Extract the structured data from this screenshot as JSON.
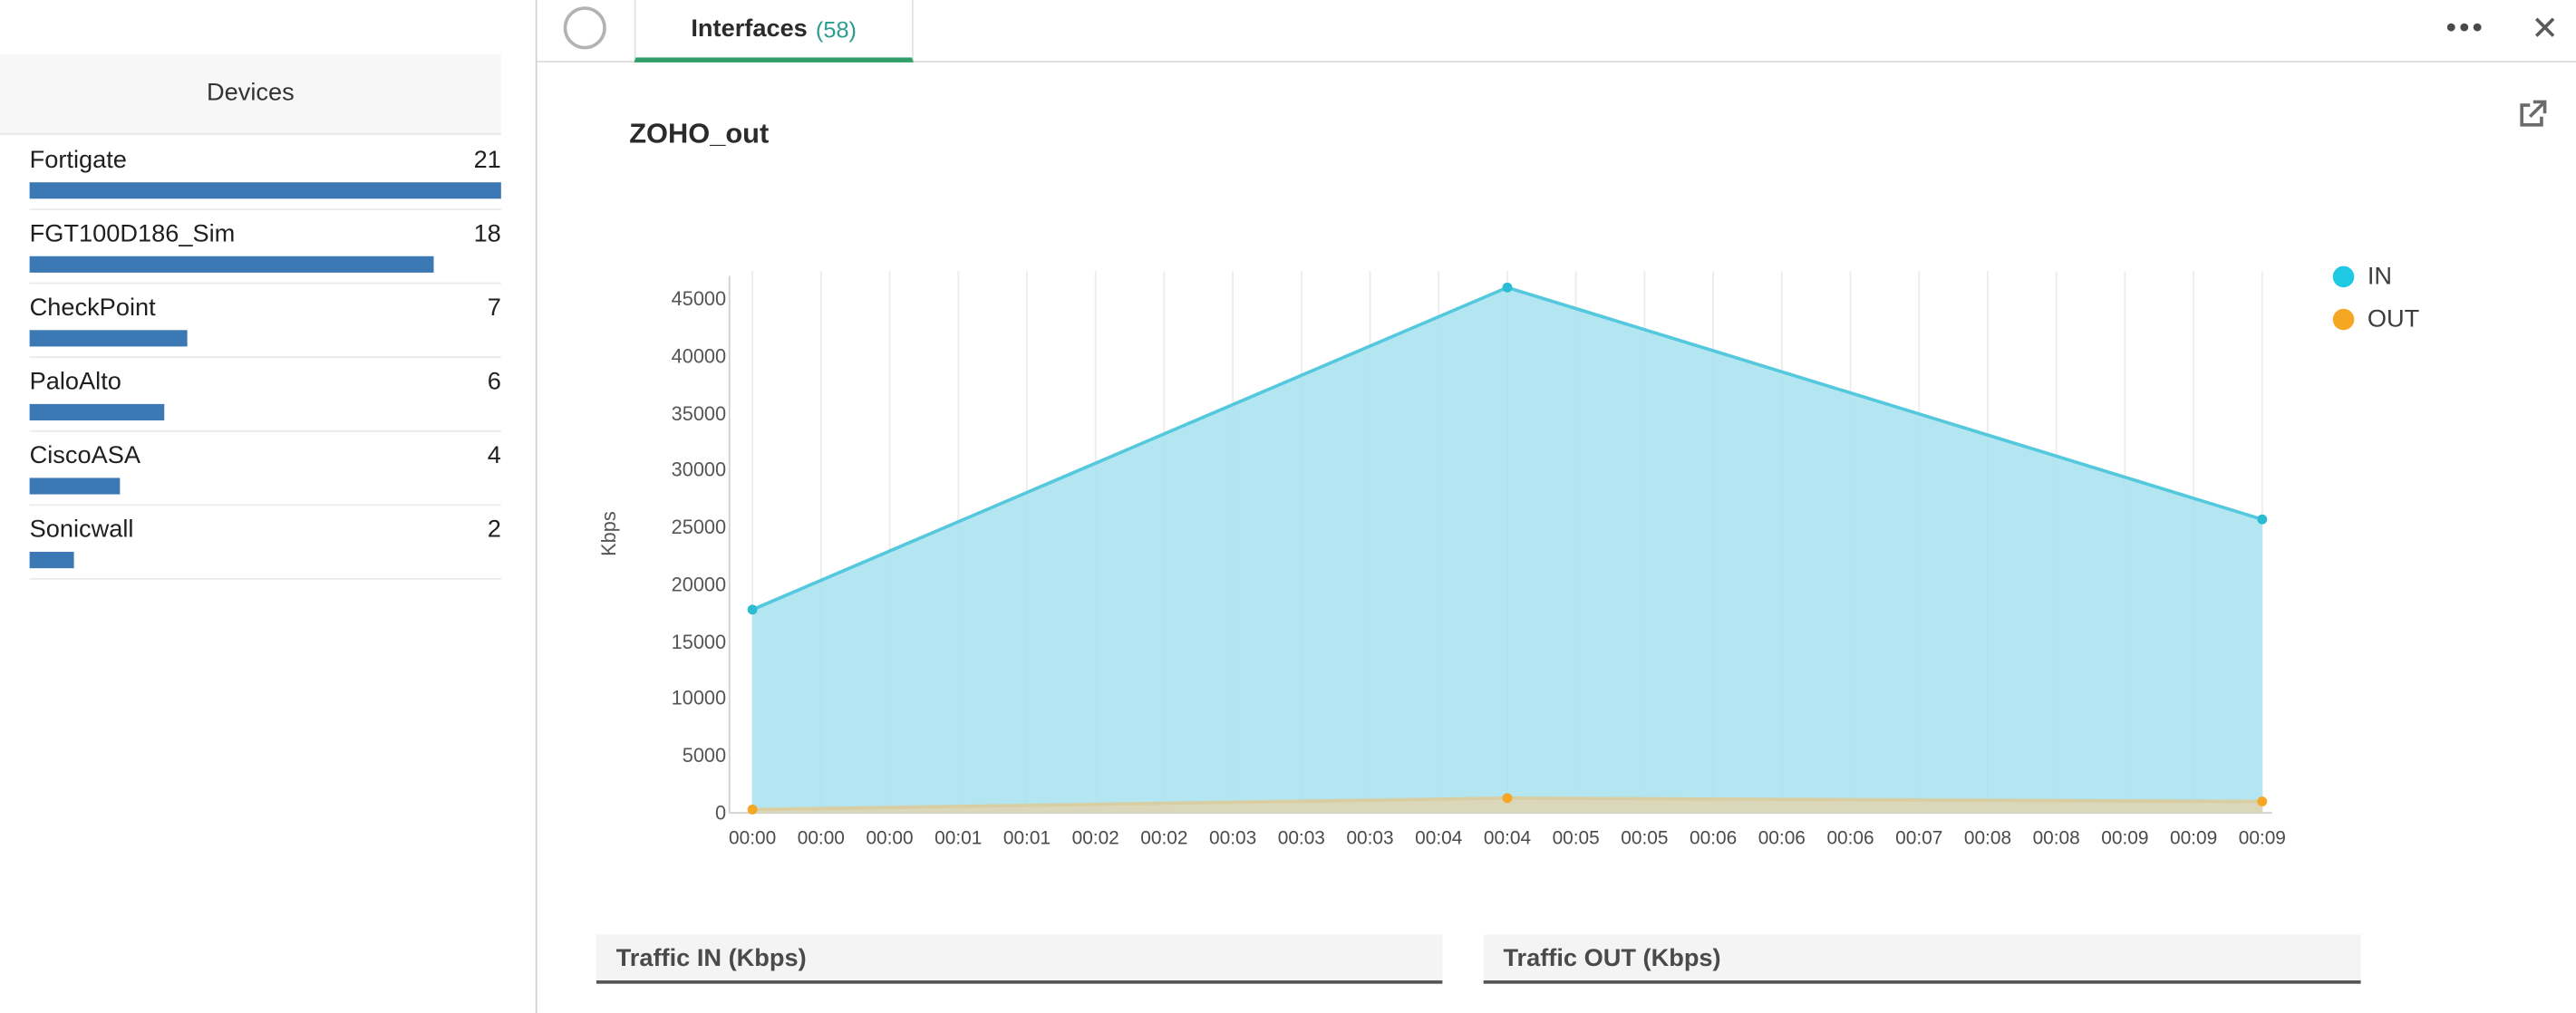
{
  "sidebar": {
    "title": "Devices",
    "max_count": 21,
    "bar_color": "#3b78b4",
    "devices": [
      {
        "name": "Fortigate",
        "count": 21
      },
      {
        "name": "FGT100D186_Sim",
        "count": 18
      },
      {
        "name": "CheckPoint",
        "count": 7
      },
      {
        "name": "PaloAlto",
        "count": 6
      },
      {
        "name": "CiscoASA",
        "count": 4
      },
      {
        "name": "Sonicwall",
        "count": 2
      }
    ]
  },
  "header": {
    "tab_label": "Interfaces",
    "tab_count": "(58)",
    "more_icon": "•••",
    "close_icon": "✕",
    "tab_underline_color": "#2f9e69"
  },
  "chart_data": {
    "type": "area",
    "title": "ZOHO_out",
    "ylabel": "Kbps",
    "ylim": [
      0,
      45000
    ],
    "ytick_step": 5000,
    "grid": "vertical",
    "legend_position": "right",
    "x_labels": [
      "00:00",
      "00:00",
      "00:00",
      "00:01",
      "00:01",
      "00:02",
      "00:02",
      "00:03",
      "00:03",
      "00:03",
      "00:04",
      "00:04",
      "00:05",
      "00:05",
      "00:06",
      "00:06",
      "00:06",
      "00:07",
      "00:08",
      "00:08",
      "00:09",
      "00:09",
      "00:09"
    ],
    "legend": [
      {
        "label": "IN",
        "color": "#1fc8e3"
      },
      {
        "label": "OUT",
        "color": "#f5a623"
      }
    ],
    "series": [
      {
        "name": "IN",
        "stroke": "#54c8dd",
        "fill": "#abe3f0",
        "marker": "#2bbcd4",
        "values": [
          {
            "i": 0,
            "v": 17800
          },
          {
            "i": 11,
            "v": 46000
          },
          {
            "i": 22,
            "v": 25700
          }
        ]
      },
      {
        "name": "OUT",
        "stroke": "#d9cda2",
        "fill": "#ded5b4",
        "marker": "#f5a623",
        "values": [
          {
            "i": 0,
            "v": 300
          },
          {
            "i": 11,
            "v": 1300
          },
          {
            "i": 22,
            "v": 1000
          }
        ]
      }
    ]
  },
  "sections": {
    "traffic_in": "Traffic IN (Kbps)",
    "traffic_out": "Traffic OUT (Kbps)"
  }
}
